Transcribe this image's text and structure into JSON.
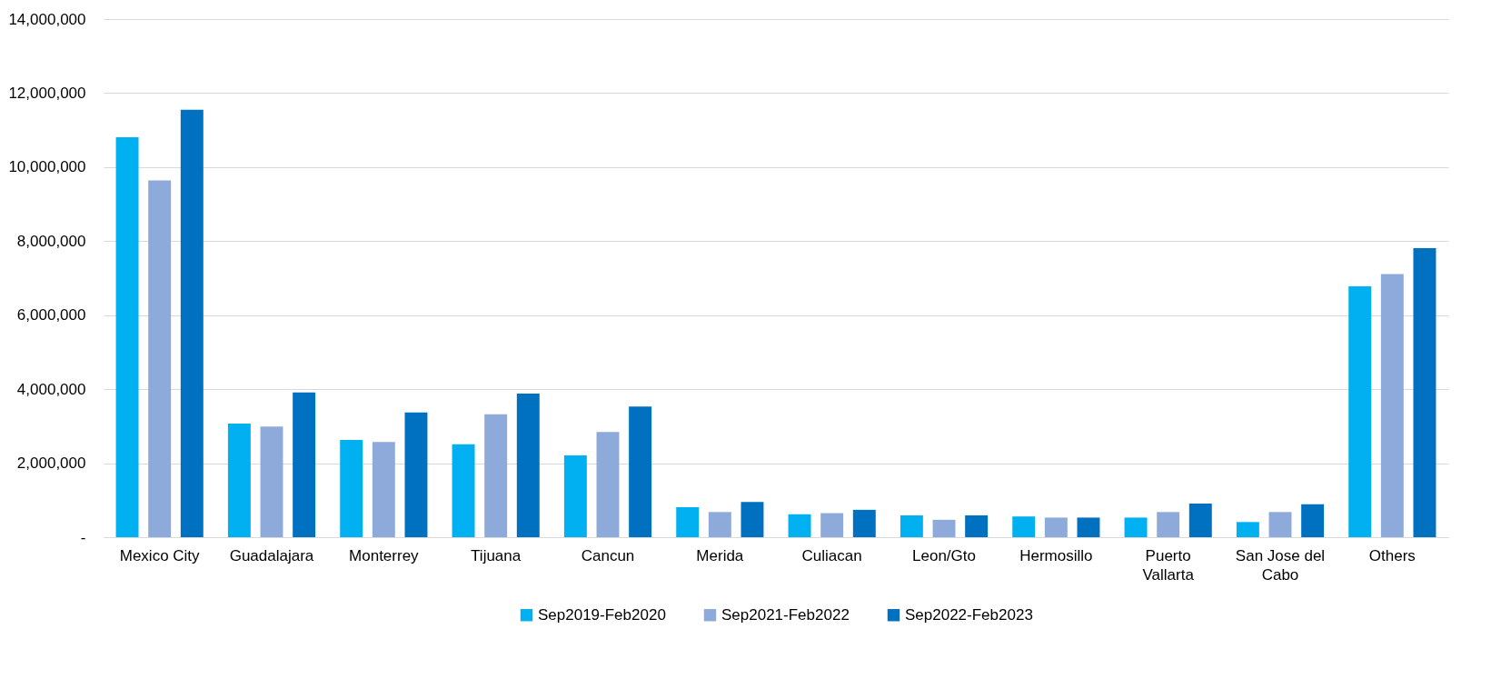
{
  "chart_data": {
    "type": "bar",
    "categories": [
      "Mexico City",
      "Guadalajara",
      "Monterrey",
      "Tijuana",
      "Cancun",
      "Merida",
      "Culiacan",
      "Leon/Gto",
      "Hermosillo",
      "Puerto Vallarta",
      "San Jose del Cabo",
      "Others"
    ],
    "series": [
      {
        "name": "Sep2019-Feb2020",
        "color": "#00b0f0",
        "values": [
          10810000,
          3070000,
          2630000,
          2510000,
          2210000,
          810000,
          620000,
          590000,
          560000,
          530000,
          410000,
          6780000
        ]
      },
      {
        "name": "Sep2021-Feb2022",
        "color": "#8eaadb",
        "values": [
          9640000,
          2990000,
          2570000,
          3320000,
          2840000,
          680000,
          650000,
          470000,
          530000,
          680000,
          680000,
          7110000
        ]
      },
      {
        "name": "Sep2022-Feb2023",
        "color": "#0070c0",
        "values": [
          11550000,
          3910000,
          3370000,
          3880000,
          3530000,
          950000,
          740000,
          590000,
          530000,
          910000,
          890000,
          7810000
        ]
      }
    ],
    "ylim": [
      0,
      14000000
    ],
    "yticks": [
      {
        "value": 0,
        "label": "-"
      },
      {
        "value": 2000000,
        "label": "2,000,000"
      },
      {
        "value": 4000000,
        "label": "4,000,000"
      },
      {
        "value": 6000000,
        "label": "6,000,000"
      },
      {
        "value": 8000000,
        "label": "8,000,000"
      },
      {
        "value": 10000000,
        "label": "10,000,000"
      },
      {
        "value": 12000000,
        "label": "12,000,000"
      },
      {
        "value": 14000000,
        "label": "14,000,000"
      }
    ],
    "grid": "y",
    "legend": "bottom"
  }
}
